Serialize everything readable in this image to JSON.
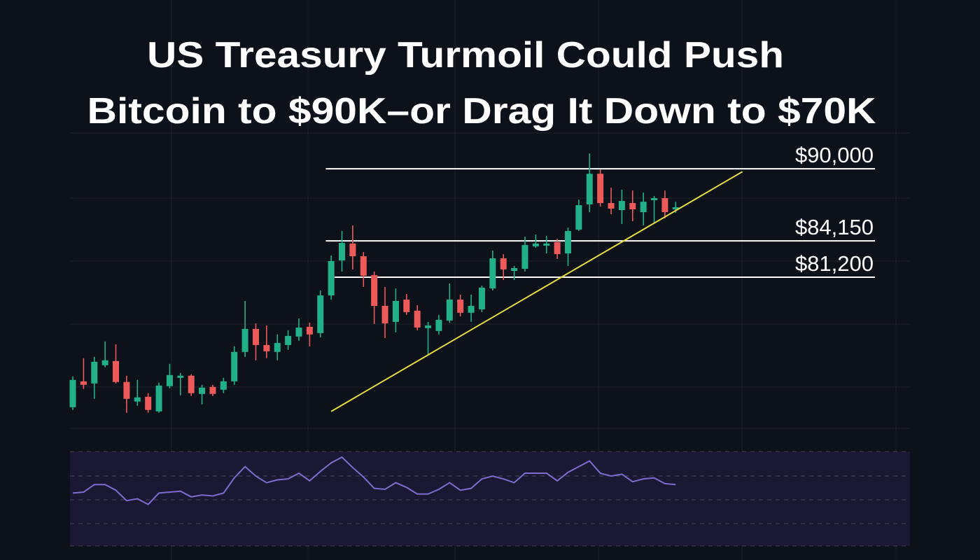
{
  "chart_data": {
    "type": "candlestick",
    "title": [
      "US Treasury Turmoil Could Push",
      "Bitcoin to $90K–or Drag It Down to $70K"
    ],
    "categories": [
      null,
      null,
      null,
      null,
      null,
      null,
      null,
      null,
      null,
      null,
      null,
      null,
      null,
      null,
      null,
      null,
      null,
      null,
      null,
      null,
      null,
      null,
      null,
      null,
      null,
      null,
      null,
      null,
      null,
      null,
      null,
      null,
      null,
      null,
      null,
      null,
      null,
      null,
      null,
      null,
      null,
      null,
      null,
      null,
      null,
      null,
      null,
      null,
      null,
      null,
      null,
      null,
      null,
      null,
      null,
      null,
      null
    ],
    "open": [
      70640,
      72740,
      72570,
      74050,
      74390,
      72690,
      71100,
      71490,
      70300,
      72350,
      73030,
      73200,
      71720,
      72290,
      72060,
      72740,
      75130,
      77000,
      75690,
      75130,
      75690,
      76380,
      77170,
      76660,
      79720,
      82560,
      83930,
      82900,
      81370,
      78870,
      77570,
      79380,
      78480,
      77060,
      76830,
      77680,
      79380,
      78310,
      78590,
      80290,
      82730,
      81710,
      81880,
      83700,
      83760,
      84040,
      83130,
      85060,
      87110,
      89600,
      87220,
      86650,
      87220,
      86480,
      87450,
      87620,
      86710
    ],
    "high": [
      73140,
      74620,
      74730,
      75980,
      75750,
      73200,
      72860,
      71780,
      72630,
      74160,
      73420,
      73310,
      72460,
      72460,
      73030,
      75580,
      79270,
      77450,
      77280,
      76550,
      76890,
      77850,
      77510,
      80120,
      82960,
      84950,
      85400,
      83250,
      81660,
      80410,
      80290,
      79840,
      78930,
      77570,
      78140,
      80690,
      79780,
      79780,
      80520,
      83360,
      83070,
      82110,
      84490,
      84660,
      84550,
      84320,
      85230,
      87500,
      91250,
      89940,
      88470,
      88300,
      88240,
      88070,
      87790,
      88240,
      87330
    ],
    "low": [
      70420,
      72120,
      71320,
      73880,
      72570,
      70190,
      70760,
      70190,
      70190,
      72180,
      71610,
      71550,
      70870,
      71550,
      71780,
      72460,
      74730,
      74450,
      74620,
      74450,
      75300,
      76040,
      75580,
      76320,
      79380,
      81660,
      81830,
      80410,
      77400,
      76260,
      76720,
      78140,
      76890,
      74840,
      76550,
      77510,
      78020,
      77570,
      78360,
      80120,
      80970,
      80970,
      81660,
      83590,
      83130,
      82680,
      82110,
      84950,
      86480,
      86940,
      86310,
      85520,
      85740,
      85400,
      85630,
      85970,
      86420
    ],
    "close": [
      72860,
      72460,
      74330,
      74450,
      72690,
      71320,
      71440,
      70420,
      72400,
      73250,
      73200,
      71780,
      72230,
      71720,
      72740,
      75130,
      77000,
      75690,
      75180,
      75860,
      76430,
      77110,
      76550,
      79720,
      82510,
      83980,
      82900,
      81320,
      78870,
      77450,
      79270,
      78360,
      77110,
      77280,
      77740,
      79380,
      78310,
      78870,
      80350,
      82730,
      81830,
      81940,
      83810,
      83930,
      83930,
      83070,
      84950,
      87050,
      89600,
      87220,
      86770,
      87390,
      86710,
      87330,
      87620,
      86480,
      86880
    ],
    "up_color": "#22b08a",
    "down_color": "#ee5a5a",
    "ylim": [
      70000,
      92000
    ],
    "levels": [
      {
        "value": 90000,
        "label": "$90,000",
        "x0": 23.5
      },
      {
        "value": 84150,
        "label": "$84,150",
        "x0": 23.5
      },
      {
        "value": 81200,
        "label": "$81,200",
        "x0": 24.3
      }
    ],
    "level_color": "#ffffff",
    "trendline": {
      "x": [
        24.0,
        62.2
      ],
      "y": [
        70300,
        89770
      ],
      "color": "#e4dc3c"
    },
    "oscillator": {
      "type": "line",
      "color": "#7f6cd0",
      "ylim": [
        0,
        100
      ],
      "values": [
        56,
        57,
        65,
        65,
        59,
        48,
        50,
        44,
        56,
        57,
        58,
        52,
        54,
        53,
        56,
        72,
        84,
        74,
        67,
        70,
        71,
        77,
        69,
        79,
        88,
        94,
        83,
        73,
        61,
        60,
        67,
        62,
        55,
        55,
        60,
        67,
        59,
        61,
        71,
        74,
        71,
        67,
        77,
        77,
        77,
        69,
        78,
        84,
        90,
        77,
        74,
        76,
        68,
        71,
        72,
        66,
        65
      ]
    }
  }
}
